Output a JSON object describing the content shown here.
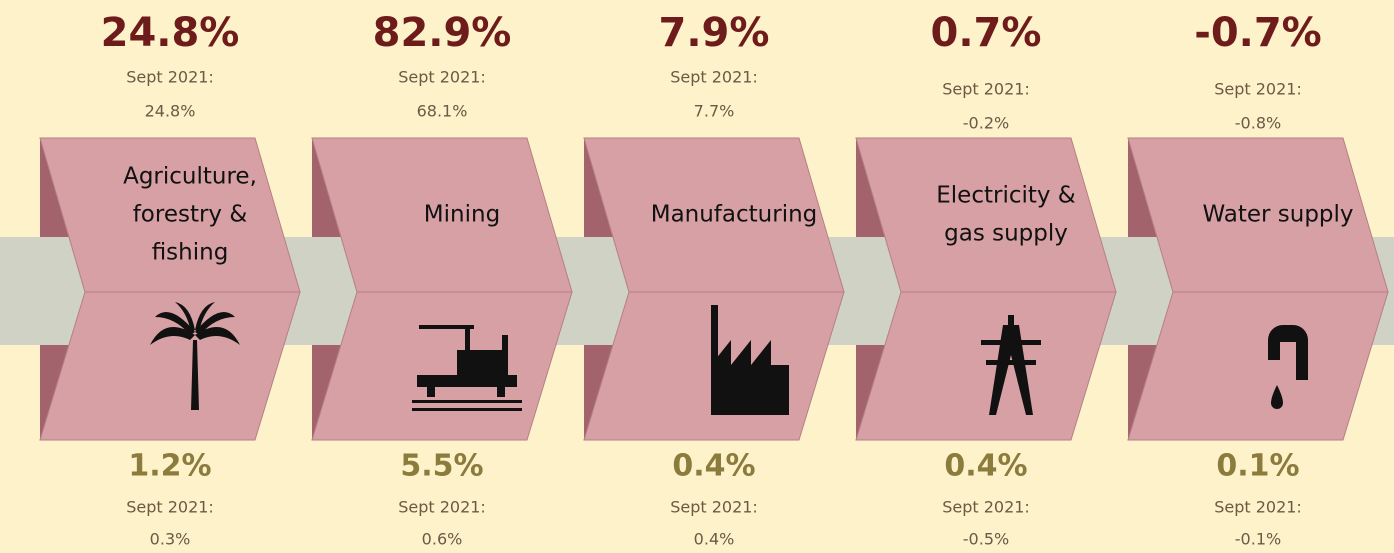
{
  "sectors": [
    {
      "name": [
        "Agriculture,",
        "forestry &",
        "fishing"
      ],
      "value": "24.8%",
      "label": "Sept 2021:",
      "prior": "24.8%",
      "bottom_value": "1.2%",
      "bottom_label": "Sept 2021:",
      "bottom_prior": "0.3%"
    },
    {
      "name": [
        "Mining"
      ],
      "value": "82.9%",
      "label": "Sept 2021:",
      "prior": "68.1%",
      "bottom_value": "5.5%",
      "bottom_label": "Sept 2021:",
      "bottom_prior": "0.6%"
    },
    {
      "name": [
        "Manufacturing"
      ],
      "value": "7.9%",
      "label": "Sept 2021:",
      "prior": "7.7%",
      "bottom_value": "0.4%",
      "bottom_label": "Sept 2021:",
      "bottom_prior": "0.4%"
    },
    {
      "name": [
        "Electricity &",
        "gas supply"
      ],
      "value": "0.7%",
      "label": "Sept 2021:",
      "prior": "-0.2%",
      "bottom_value": "0.4%",
      "bottom_label": "Sept 2021:",
      "bottom_prior": "-0.5%"
    },
    {
      "name": [
        "Water supply"
      ],
      "value": "-0.7%",
      "label": "Sept 2021:",
      "prior": "-0.8%",
      "bottom_value": "0.1%",
      "bottom_label": "Sept 2021:",
      "bottom_prior": "-0.1%"
    }
  ]
}
